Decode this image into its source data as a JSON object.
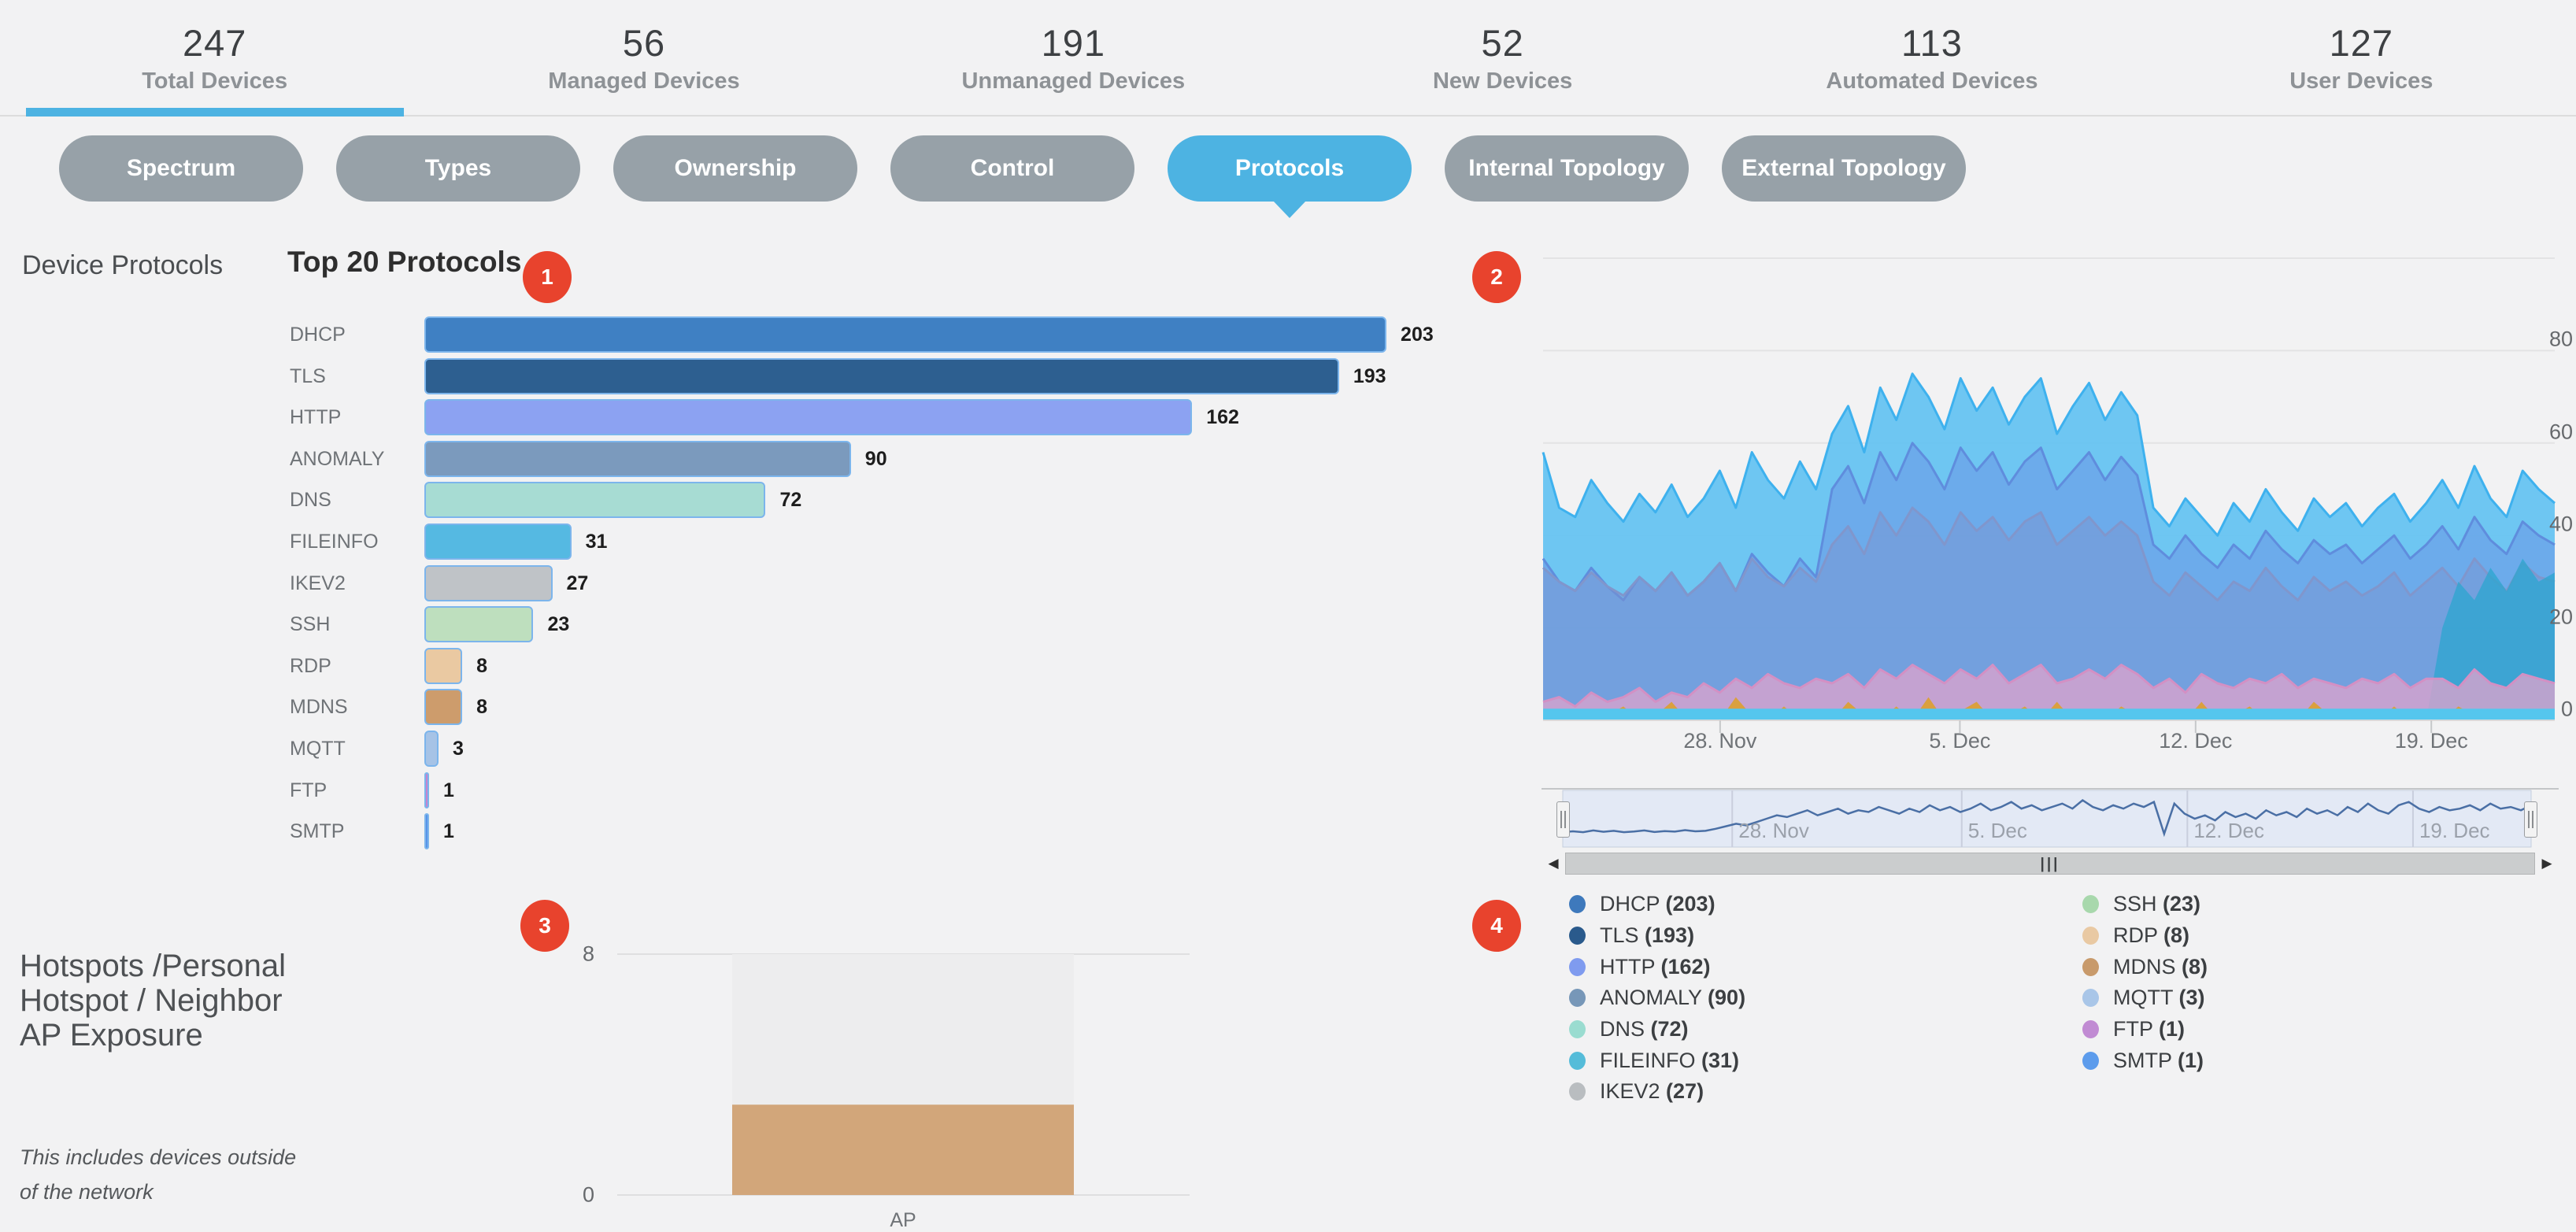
{
  "page": {
    "background": "#f2f2f3"
  },
  "colors": {
    "accent_blue": "#4db3e2",
    "inactive_pill": "#97a1a8",
    "annotation_red": "#e8432d",
    "bar_stroke": "#7cb5ec",
    "navigator_line": "#4a6fa5",
    "navigator_bg": "#e3e9f5"
  },
  "stats": {
    "active_index": 0,
    "items": [
      {
        "value": "247",
        "label": "Total Devices"
      },
      {
        "value": "56",
        "label": "Managed Devices"
      },
      {
        "value": "191",
        "label": "Unmanaged Devices"
      },
      {
        "value": "52",
        "label": "New Devices"
      },
      {
        "value": "113",
        "label": "Automated Devices"
      },
      {
        "value": "127",
        "label": "User Devices"
      }
    ]
  },
  "tabs": {
    "active_index": 4,
    "items": [
      {
        "label": "Spectrum"
      },
      {
        "label": "Types"
      },
      {
        "label": "Ownership"
      },
      {
        "label": "Control"
      },
      {
        "label": "Protocols"
      },
      {
        "label": "Internal Topology"
      },
      {
        "label": "External Topology"
      }
    ]
  },
  "sidebar": {
    "section_label": "Device Protocols"
  },
  "markers": {
    "items": [
      "1",
      "2",
      "3",
      "4"
    ]
  },
  "legend": {
    "columns": [
      [
        {
          "name": "DHCP",
          "count": "203",
          "color": "#3e79bc"
        },
        {
          "name": "TLS",
          "count": "193",
          "color": "#2a5a8c"
        },
        {
          "name": "HTTP",
          "count": "162",
          "color": "#7f9bef"
        },
        {
          "name": "ANOMALY",
          "count": "90",
          "color": "#7797b8"
        },
        {
          "name": "DNS",
          "count": "72",
          "color": "#9adcd0"
        },
        {
          "name": "FILEINFO",
          "count": "31",
          "color": "#55bcd9"
        },
        {
          "name": "IKEV2",
          "count": "27",
          "color": "#b9bdc0"
        }
      ],
      [
        {
          "name": "SSH",
          "count": "23",
          "color": "#a8d8ac"
        },
        {
          "name": "RDP",
          "count": "8",
          "color": "#e9c9a3"
        },
        {
          "name": "MDNS",
          "count": "8",
          "color": "#c89a6b"
        },
        {
          "name": "MQTT",
          "count": "3",
          "color": "#a9c6e8"
        },
        {
          "name": "FTP",
          "count": "1",
          "color": "#c18bd3"
        },
        {
          "name": "SMTP",
          "count": "1",
          "color": "#5d9cec"
        }
      ]
    ]
  },
  "chart_data": [
    {
      "id": "top20-protocols",
      "type": "bar",
      "orientation": "horizontal",
      "title": "Top 20 Protocols",
      "categories": [
        "DHCP",
        "TLS",
        "HTTP",
        "ANOMALY",
        "DNS",
        "FILEINFO",
        "IKEV2",
        "SSH",
        "RDP",
        "MDNS",
        "MQTT",
        "FTP",
        "SMTP"
      ],
      "values": [
        203,
        193,
        162,
        90,
        72,
        31,
        27,
        23,
        8,
        8,
        3,
        1,
        1
      ],
      "bar_colors": [
        "#3f80c3",
        "#2d5f90",
        "#8ca2f2",
        "#7b9abd",
        "#a7dcd3",
        "#55b9e2",
        "#bfc3c7",
        "#bedfbe",
        "#eac9a2",
        "#cd9c6c",
        "#a6c3e6",
        "#c783cd",
        "#5793e8"
      ],
      "xlim": [
        0,
        210
      ],
      "grid": false
    },
    {
      "id": "protocol-activity-timeline",
      "type": "area",
      "title": "",
      "ylim": [
        0,
        100
      ],
      "yticks": [
        0,
        20,
        40,
        60,
        80
      ],
      "grid": true,
      "legend_position": "bottom",
      "xticks": [
        {
          "label": "28. Nov",
          "f": 0.175
        },
        {
          "label": "5. Dec",
          "f": 0.412
        },
        {
          "label": "12. Dec",
          "f": 0.645
        },
        {
          "label": "19. Dec",
          "f": 0.878
        }
      ],
      "series": [
        {
          "name": "HTTP-activity",
          "fill": "#5fc1f2",
          "stroke": "#3eb1ee",
          "opacity": 0.9,
          "values": [
            58,
            46,
            44,
            52,
            47,
            43,
            49,
            45,
            51,
            44,
            48,
            54,
            46,
            58,
            52,
            48,
            56,
            50,
            62,
            68,
            58,
            72,
            65,
            75,
            70,
            63,
            74,
            67,
            72,
            64,
            70,
            74,
            62,
            68,
            73,
            65,
            71,
            66,
            46,
            42,
            48,
            44,
            40,
            47,
            43,
            50,
            45,
            41,
            48,
            44,
            47,
            42,
            46,
            49,
            43,
            47,
            52,
            46,
            55,
            48,
            44,
            54,
            50,
            47
          ]
        },
        {
          "name": "DHCP-activity",
          "fill": "#6a9ae6",
          "stroke": "#5f8ddd",
          "opacity": 0.6,
          "values": [
            35,
            30,
            28,
            33,
            29,
            26,
            31,
            28,
            32,
            27,
            30,
            34,
            28,
            36,
            32,
            29,
            35,
            31,
            50,
            55,
            47,
            58,
            52,
            60,
            56,
            50,
            59,
            54,
            58,
            51,
            56,
            59,
            50,
            54,
            58,
            52,
            57,
            53,
            38,
            35,
            40,
            36,
            33,
            38,
            35,
            41,
            37,
            34,
            39,
            36,
            38,
            34,
            37,
            40,
            35,
            38,
            42,
            37,
            44,
            39,
            36,
            43,
            40,
            38
          ]
        },
        {
          "name": "TLS-activity",
          "fill": "#7d93cf",
          "stroke": "#8096cc",
          "opacity": 0.45,
          "values": [
            33,
            30,
            28,
            32,
            29,
            27,
            31,
            28,
            32,
            27,
            30,
            34,
            28,
            35,
            31,
            29,
            33,
            30,
            38,
            42,
            36,
            45,
            40,
            46,
            43,
            38,
            45,
            41,
            44,
            39,
            43,
            45,
            38,
            41,
            44,
            40,
            43,
            40,
            30,
            27,
            32,
            29,
            26,
            30,
            28,
            33,
            29,
            26,
            31,
            28,
            30,
            27,
            29,
            32,
            27,
            30,
            33,
            29,
            35,
            31,
            28,
            34,
            31,
            30
          ]
        },
        {
          "name": "DNS-activity",
          "fill": "#2ba6cf",
          "stroke": "none",
          "opacity": 0.75,
          "values": [
            0,
            0,
            0,
            0,
            0,
            0,
            0,
            0,
            0,
            0,
            0,
            0,
            0,
            0,
            0,
            0,
            0,
            0,
            0,
            0,
            0,
            0,
            0,
            0,
            0,
            0,
            0,
            0,
            0,
            0,
            0,
            0,
            0,
            0,
            0,
            0,
            0,
            0,
            0,
            0,
            0,
            0,
            0,
            0,
            0,
            0,
            0,
            0,
            0,
            0,
            0,
            0,
            0,
            0,
            0,
            0,
            20,
            30,
            26,
            33,
            28,
            35,
            30,
            32
          ]
        },
        {
          "name": "ANOMALY-activity",
          "fill": "#d8a3cd",
          "stroke": "#d390c4",
          "opacity": 0.8,
          "values": [
            4,
            5,
            3,
            6,
            4,
            5,
            7,
            4,
            6,
            5,
            8,
            6,
            9,
            7,
            10,
            8,
            7,
            9,
            8,
            10,
            7,
            11,
            9,
            12,
            10,
            8,
            11,
            9,
            12,
            8,
            10,
            12,
            8,
            9,
            11,
            9,
            12,
            10,
            7,
            9,
            6,
            10,
            8,
            7,
            9,
            8,
            10,
            7,
            9,
            8,
            7,
            9,
            8,
            10,
            7,
            9,
            9,
            7,
            11,
            8,
            7,
            10,
            9,
            8
          ]
        },
        {
          "name": "MDNS-activity",
          "fill": "#dda02f",
          "stroke": "none",
          "opacity": 0.9,
          "values": [
            1,
            0,
            2,
            0,
            1,
            3,
            0,
            1,
            4,
            0,
            2,
            0,
            5,
            1,
            0,
            3,
            0,
            2,
            0,
            4,
            1,
            0,
            3,
            0,
            5,
            0,
            2,
            4,
            0,
            1,
            3,
            0,
            4,
            0,
            2,
            0,
            3,
            1,
            0,
            2,
            0,
            4,
            0,
            1,
            3,
            0,
            2,
            0,
            4,
            1,
            0,
            2,
            0,
            3,
            0,
            1,
            0,
            3,
            1,
            0,
            2,
            0,
            1,
            0
          ]
        },
        {
          "name": "FILEINFO-activity",
          "fill": "#55c6ee",
          "stroke": "none",
          "opacity": 1,
          "constant": 2.5
        }
      ]
    },
    {
      "id": "range-navigator",
      "type": "line",
      "color": "#4a6fa5",
      "ylim": [
        0,
        30
      ],
      "xticks": [
        {
          "label": "28. Nov",
          "f": 0.175
        },
        {
          "label": "5. Dec",
          "f": 0.412
        },
        {
          "label": "12. Dec",
          "f": 0.645
        },
        {
          "label": "19. Dec",
          "f": 0.878
        }
      ],
      "values": [
        7,
        7.5,
        7,
        8,
        7.2,
        7.8,
        7,
        7.4,
        8,
        7.1,
        7.6,
        7.3,
        8.2,
        7.5,
        7.8,
        9,
        10.5,
        12,
        11,
        13,
        15,
        17,
        16,
        18,
        20,
        17,
        19,
        21,
        18,
        20,
        19,
        22,
        20,
        18,
        21,
        19,
        23,
        20,
        22,
        19,
        21,
        24,
        20,
        22,
        25,
        21,
        23,
        20,
        22,
        24,
        21,
        26,
        22,
        20,
        23,
        21,
        24,
        22,
        25,
        6,
        24,
        18,
        15,
        17,
        14,
        19,
        16,
        18,
        15,
        20,
        17,
        19,
        16,
        21,
        18,
        20,
        17,
        22,
        19,
        24,
        20,
        18,
        23,
        25,
        21,
        19,
        22,
        20,
        21,
        23,
        20,
        24,
        21,
        22,
        20,
        23
      ]
    },
    {
      "id": "hotspot-exposure",
      "type": "bar",
      "title": "Hotspots /Personal Hotspot / Neighbor AP Exposure",
      "note": "This includes devices outside of the network",
      "categories": [
        "AP"
      ],
      "values": [
        3
      ],
      "ylim": [
        0,
        8
      ],
      "yticks": [
        8,
        0
      ],
      "bar_color": "#d2a67a",
      "column_bg": "#ededee",
      "grid": true
    }
  ]
}
